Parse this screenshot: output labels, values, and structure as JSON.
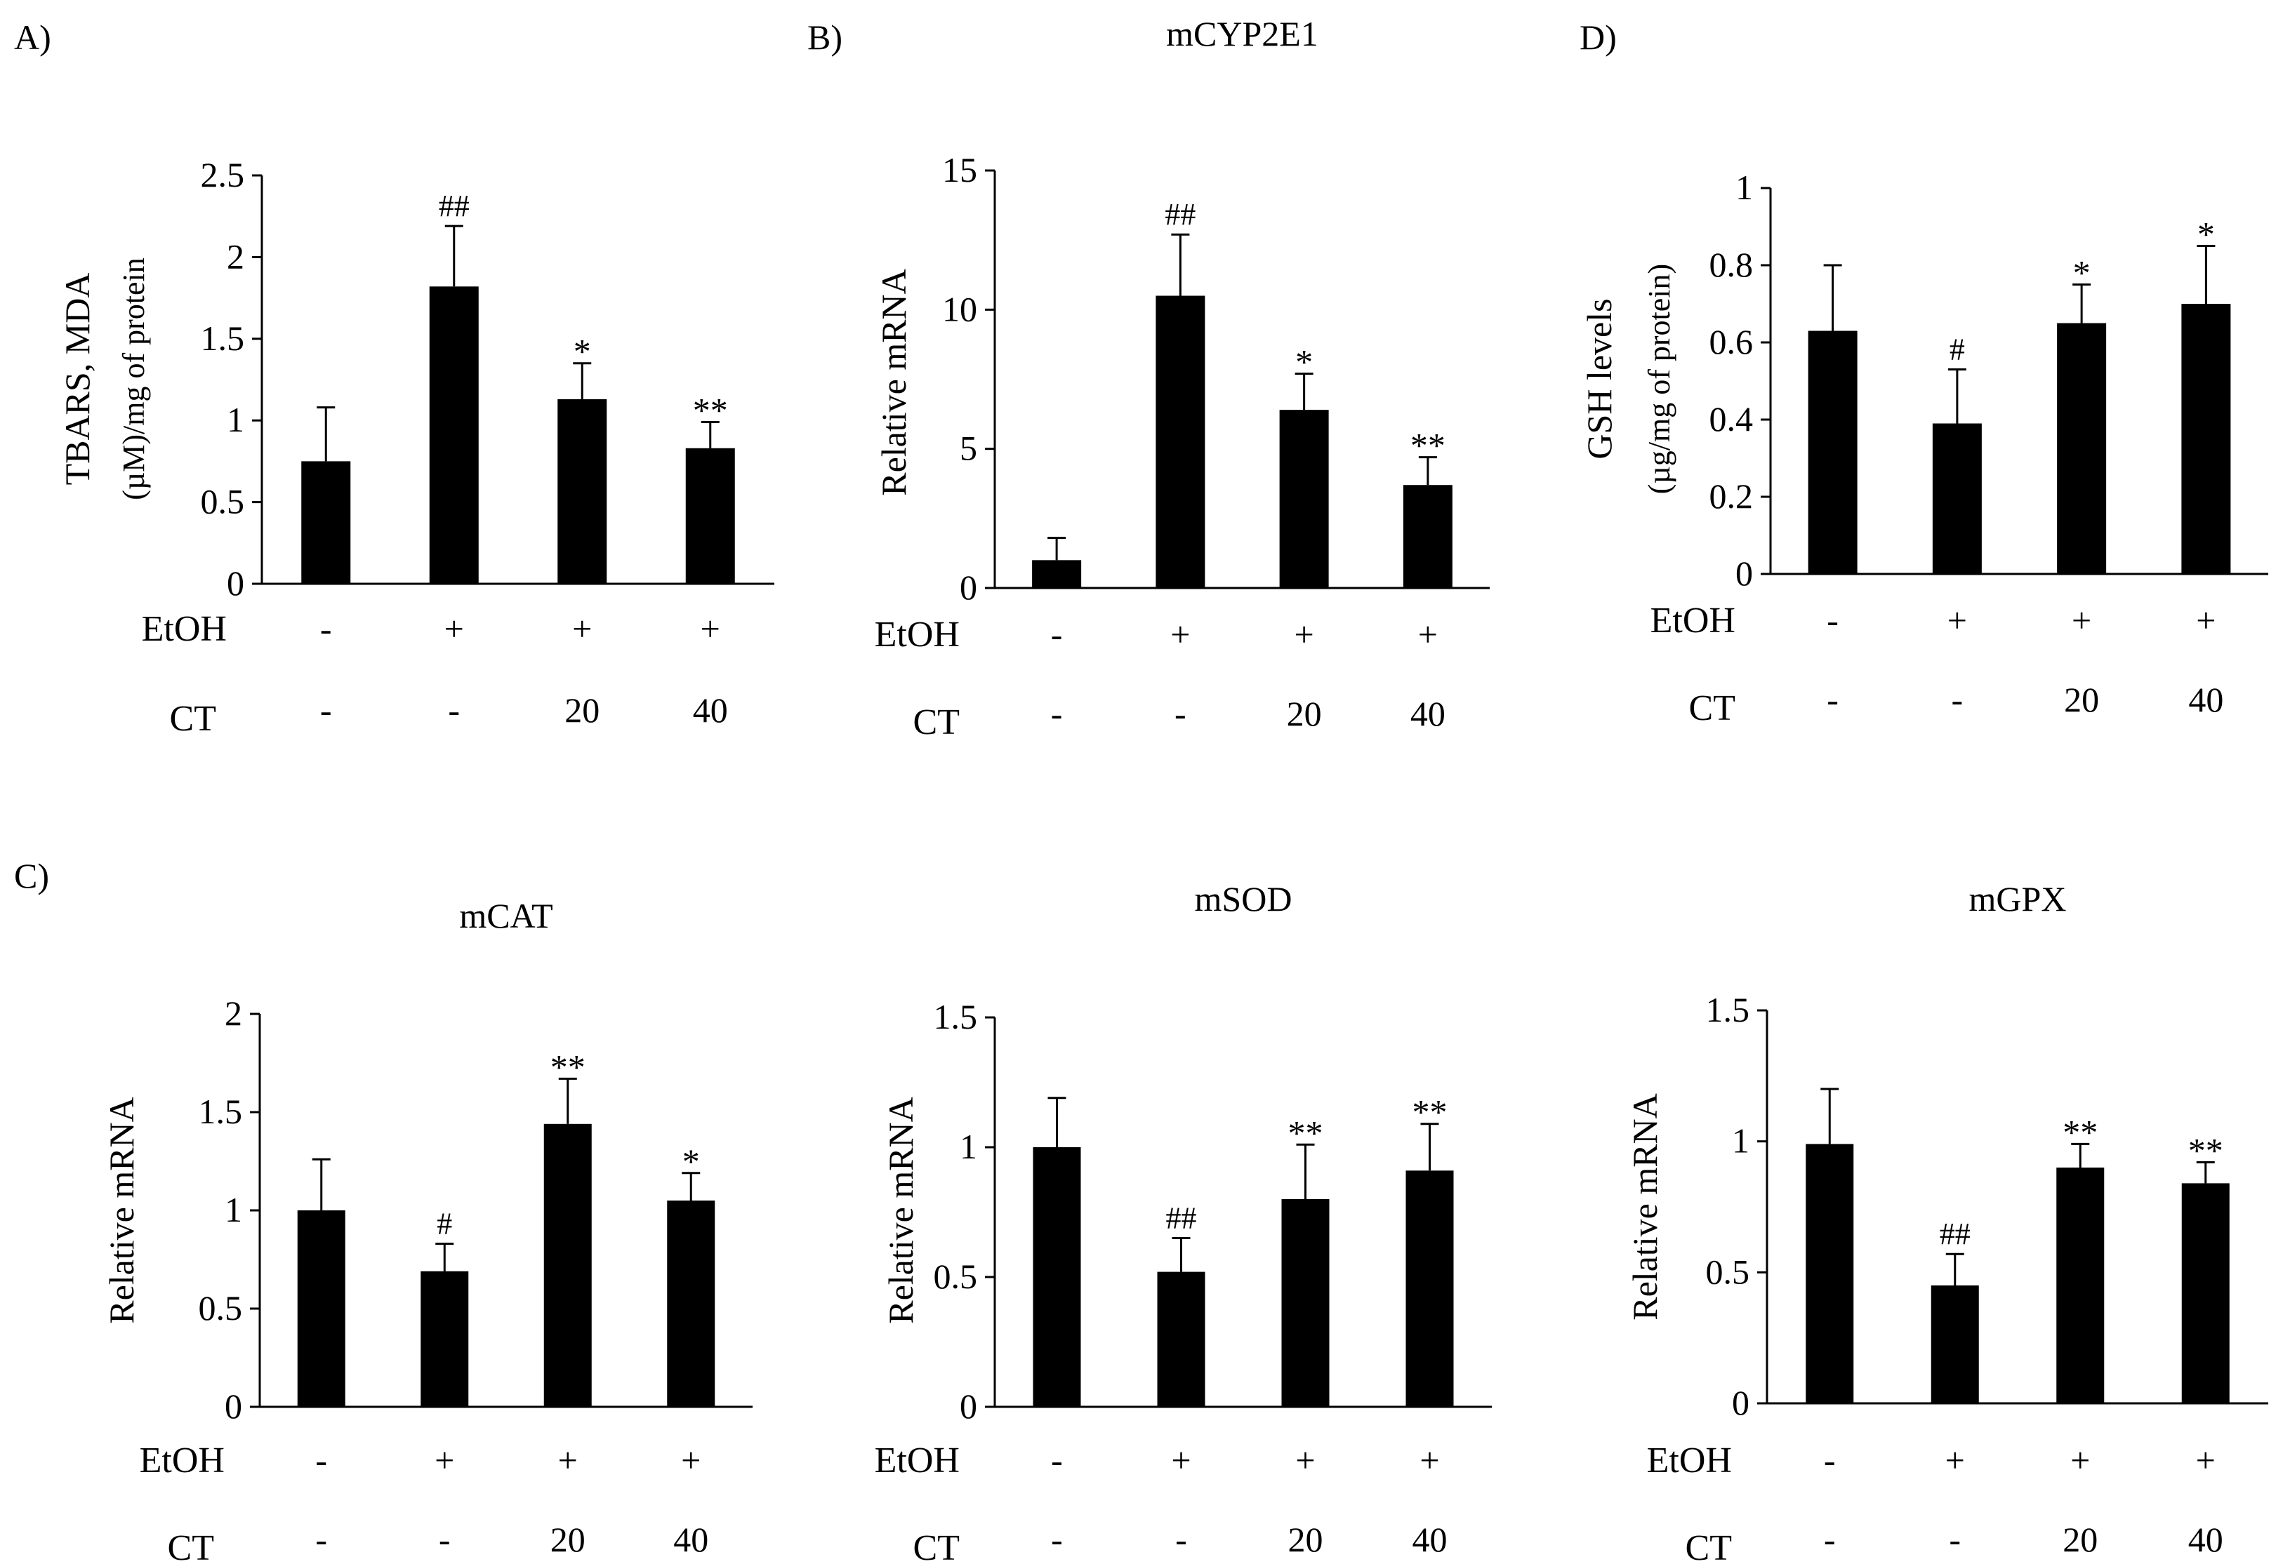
{
  "figure": {
    "panels_order": [
      "A",
      "B",
      "D",
      "C1",
      "C2",
      "C3"
    ]
  },
  "colors": {
    "bar": "#000000",
    "axis": "#000000",
    "background": "#ffffff"
  },
  "row_labels": {
    "etoh": "EtOH",
    "ct": "CT"
  },
  "chart_data": [
    {
      "id": "A",
      "type": "bar",
      "panel_label": "A)",
      "title": "",
      "ylabel": "TBARS, MDA",
      "ylabel2": "(µM)/mg of protein",
      "ylim": [
        0,
        2.5
      ],
      "ticks": [
        0,
        0.5,
        1,
        1.5,
        2,
        2.5
      ],
      "tick_labels": [
        "0",
        "0.5",
        "1",
        "1.5",
        "2",
        "2.5"
      ],
      "etoh": [
        "-",
        "+",
        "+",
        "+"
      ],
      "ct": [
        "-",
        "-",
        "20",
        "40"
      ],
      "values": [
        0.75,
        1.82,
        1.13,
        0.83
      ],
      "errors": [
        0.33,
        0.37,
        0.22,
        0.16
      ],
      "significance": [
        "",
        "##",
        "*",
        "**"
      ]
    },
    {
      "id": "B",
      "type": "bar",
      "panel_label": "B)",
      "title": "mCYP2E1",
      "ylabel": "Relative  mRNA",
      "ylabel2": "",
      "ylim": [
        0,
        15
      ],
      "ticks": [
        0,
        5,
        10,
        15
      ],
      "tick_labels": [
        "0",
        "5",
        "10",
        "15"
      ],
      "etoh": [
        "-",
        "+",
        "+",
        "+"
      ],
      "ct": [
        "-",
        "-",
        "20",
        "40"
      ],
      "values": [
        1.0,
        10.5,
        6.4,
        3.7
      ],
      "errors": [
        0.8,
        2.2,
        1.3,
        1.0
      ],
      "significance": [
        "",
        "##",
        "*",
        "**"
      ]
    },
    {
      "id": "D",
      "type": "bar",
      "panel_label": "D)",
      "title": "",
      "ylabel": "GSH levels",
      "ylabel2": "(µg/mg  of protein)",
      "ylim": [
        0,
        1
      ],
      "ticks": [
        0,
        0.2,
        0.4,
        0.6,
        0.8,
        1
      ],
      "tick_labels": [
        "0",
        "0.2",
        "0.4",
        "0.6",
        "0.8",
        "1"
      ],
      "etoh": [
        "-",
        "+",
        "+",
        "+"
      ],
      "ct": [
        "-",
        "-",
        "20",
        "40"
      ],
      "values": [
        0.63,
        0.39,
        0.65,
        0.7
      ],
      "errors": [
        0.17,
        0.14,
        0.1,
        0.15
      ],
      "significance": [
        "",
        "#",
        "*",
        "*"
      ]
    },
    {
      "id": "C1",
      "type": "bar",
      "panel_label": "C)",
      "title": "mCAT",
      "ylabel": "Relative  mRNA",
      "ylabel2": "",
      "ylim": [
        0,
        2
      ],
      "ticks": [
        0,
        0.5,
        1,
        1.5,
        2
      ],
      "tick_labels": [
        "0",
        "0.5",
        "1",
        "1.5",
        "2"
      ],
      "etoh": [
        "-",
        "+",
        "+",
        "+"
      ],
      "ct": [
        "-",
        "-",
        "20",
        "40"
      ],
      "values": [
        1.0,
        0.69,
        1.44,
        1.05
      ],
      "errors": [
        0.26,
        0.14,
        0.23,
        0.14
      ],
      "significance": [
        "",
        "#",
        "**",
        "*"
      ]
    },
    {
      "id": "C2",
      "type": "bar",
      "panel_label": "",
      "title": "mSOD",
      "ylabel": "Relative  mRNA",
      "ylabel2": "",
      "ylim": [
        0,
        1.5
      ],
      "ticks": [
        0,
        0.5,
        1,
        1.5
      ],
      "tick_labels": [
        "0",
        "0.5",
        "1",
        "1.5"
      ],
      "etoh": [
        "-",
        "+",
        "+",
        "+"
      ],
      "ct": [
        "-",
        "-",
        "20",
        "40"
      ],
      "values": [
        1.0,
        0.52,
        0.8,
        0.91
      ],
      "errors": [
        0.19,
        0.13,
        0.21,
        0.18
      ],
      "significance": [
        "",
        "##",
        "**",
        "**"
      ]
    },
    {
      "id": "C3",
      "type": "bar",
      "panel_label": "",
      "title": "mGPX",
      "ylabel": "Relative  mRNA",
      "ylabel2": "",
      "ylim": [
        0,
        1.5
      ],
      "ticks": [
        0,
        0.5,
        1,
        1.5
      ],
      "tick_labels": [
        "0",
        "0.5",
        "1",
        "1.5"
      ],
      "etoh": [
        "-",
        "+",
        "+",
        "+"
      ],
      "ct": [
        "-",
        "-",
        "20",
        "40"
      ],
      "values": [
        0.99,
        0.45,
        0.9,
        0.84
      ],
      "errors": [
        0.21,
        0.12,
        0.09,
        0.08
      ],
      "significance": [
        "",
        "##",
        "**",
        "**"
      ]
    }
  ]
}
